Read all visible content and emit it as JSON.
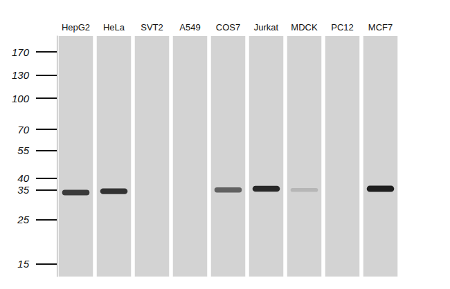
{
  "chart_data": {
    "type": "western_blot",
    "categories": [
      "HepG2",
      "HeLa",
      "SVT2",
      "A549",
      "COS7",
      "Jurkat",
      "MDCK",
      "PC12",
      "MCF7"
    ],
    "values": [
      34,
      34.5,
      null,
      null,
      35,
      35.5,
      35,
      null,
      35.5
    ],
    "band_intensity": [
      0.8,
      0.85,
      null,
      null,
      0.6,
      0.9,
      0.15,
      null,
      0.95
    ],
    "color": "#151515",
    "log": "y",
    "ylim": [
      13,
      204
    ],
    "yticks": [
      15,
      25,
      35,
      40,
      55,
      70,
      100,
      130,
      170
    ],
    "grid": false
  }
}
